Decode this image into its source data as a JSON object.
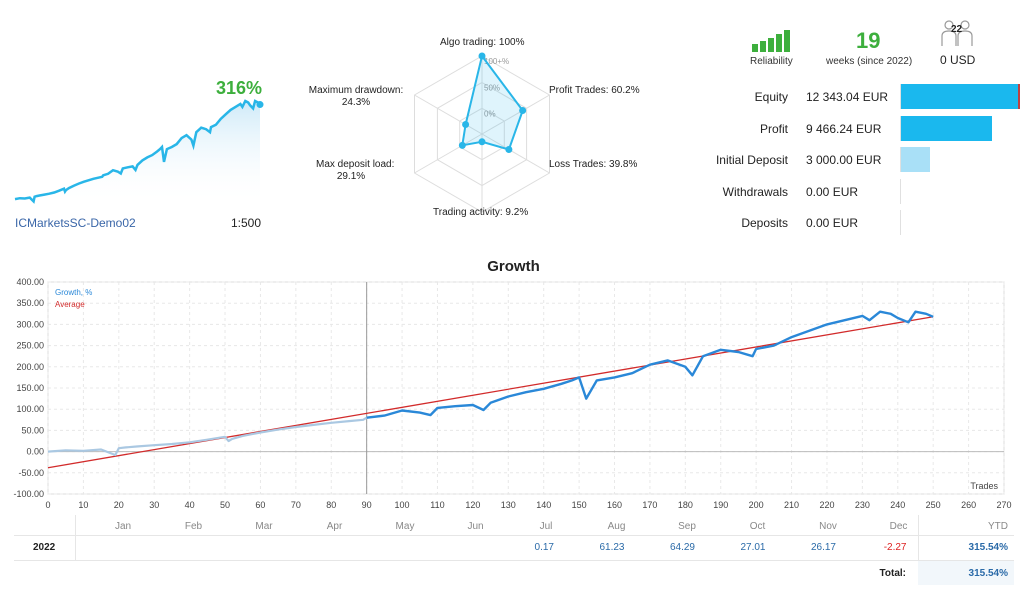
{
  "summary": {
    "growth_pct": "316%",
    "broker": "ICMarketsSC-Demo02",
    "leverage": "1:500"
  },
  "radar": {
    "axes": [
      {
        "label": "Algo trading: 100%",
        "value": 100
      },
      {
        "label": "Profit Trades: 60.2%",
        "value": 60.2
      },
      {
        "label": "Loss Trades: 39.8%",
        "value": 39.8
      },
      {
        "label": "Trading activity: 9.2%",
        "value": 9.2
      },
      {
        "label": "Max deposit load:\n29.1%",
        "value": 29.1
      },
      {
        "label": "Maximum drawdown:\n24.3%",
        "value": 24.3
      }
    ],
    "ticks": [
      "100+%",
      "50%",
      "0%"
    ]
  },
  "stats": {
    "reliability_label": "Reliability",
    "weeks": "19",
    "weeks_label": "weeks (since 2022)",
    "subscribers": "22",
    "subscription_price": "0 USD",
    "rows": [
      {
        "label": "Equity",
        "value": "12 343.04 EUR",
        "amount": 12343.04,
        "color": "#1ab8ee"
      },
      {
        "label": "Profit",
        "value": "9 466.24 EUR",
        "amount": 9466.24,
        "color": "#1ab8ee"
      },
      {
        "label": "Initial Deposit",
        "value": "3 000.00 EUR",
        "amount": 3000,
        "color": "#a9e0f7"
      },
      {
        "label": "Withdrawals",
        "value": "0.00 EUR",
        "amount": 0,
        "color": "#1ab8ee"
      },
      {
        "label": "Deposits",
        "value": "0.00 EUR",
        "amount": 0,
        "color": "#1ab8ee"
      }
    ]
  },
  "chart_data": {
    "type": "line",
    "title": "Growth",
    "xlabel": "Trades",
    "ylabel": "",
    "xlim": [
      0,
      270
    ],
    "ylim": [
      -100,
      400
    ],
    "xticks": [
      0,
      10,
      20,
      30,
      40,
      50,
      60,
      70,
      80,
      90,
      100,
      110,
      120,
      130,
      140,
      150,
      160,
      170,
      180,
      190,
      200,
      210,
      220,
      230,
      240,
      250,
      260,
      270
    ],
    "yticks": [
      -100,
      -50,
      0,
      50,
      100,
      150,
      200,
      250,
      300,
      350,
      400
    ],
    "ytick_labels": [
      "-100.00",
      "-50.00",
      "0.00",
      "50.00",
      "100.00",
      "150.00",
      "200.00",
      "250.00",
      "300.00",
      "350.00",
      "400.00"
    ],
    "legend": [
      {
        "name": "Growth, %",
        "color": "#2a88d8"
      },
      {
        "name": "Average",
        "color": "#d22b2b"
      }
    ],
    "series": [
      {
        "name": "Growth, %",
        "x": [
          0,
          5,
          10,
          15,
          19,
          20,
          22,
          25,
          30,
          35,
          40,
          45,
          50,
          51,
          52,
          55,
          60,
          65,
          70,
          75,
          80,
          85,
          89,
          90,
          95,
          100,
          105,
          108,
          110,
          115,
          120,
          123,
          125,
          130,
          135,
          140,
          145,
          148,
          150,
          152,
          155,
          160,
          165,
          170,
          175,
          180,
          182,
          185,
          190,
          195,
          199,
          200,
          205,
          210,
          215,
          220,
          225,
          230,
          232,
          235,
          238,
          240,
          243,
          245,
          248,
          250
        ],
        "y": [
          0,
          3,
          2,
          5,
          -8,
          8,
          10,
          12,
          15,
          18,
          22,
          28,
          35,
          25,
          30,
          37,
          45,
          52,
          58,
          63,
          68,
          72,
          75,
          80,
          85,
          97,
          92,
          86,
          103,
          107,
          110,
          98,
          115,
          130,
          140,
          148,
          160,
          168,
          175,
          125,
          168,
          175,
          185,
          205,
          215,
          200,
          180,
          225,
          240,
          235,
          225,
          242,
          250,
          270,
          285,
          300,
          310,
          320,
          310,
          330,
          325,
          315,
          305,
          330,
          325,
          318
        ]
      },
      {
        "name": "Average",
        "x": [
          0,
          250
        ],
        "y": [
          -38,
          318
        ]
      }
    ],
    "marker_x": 90,
    "gray_until_x": 90
  },
  "monthly": {
    "months": [
      "Jan",
      "Feb",
      "Mar",
      "Apr",
      "May",
      "Jun",
      "Jul",
      "Aug",
      "Sep",
      "Oct",
      "Nov",
      "Dec"
    ],
    "year": "2022",
    "values": [
      "",
      "",
      "",
      "",
      "",
      "",
      "0.17",
      "61.23",
      "64.29",
      "27.01",
      "26.17",
      "-2.27"
    ],
    "ytd_label": "YTD",
    "ytd_value": "315.54%",
    "total_label": "Total:",
    "total_value": "315.54%"
  }
}
